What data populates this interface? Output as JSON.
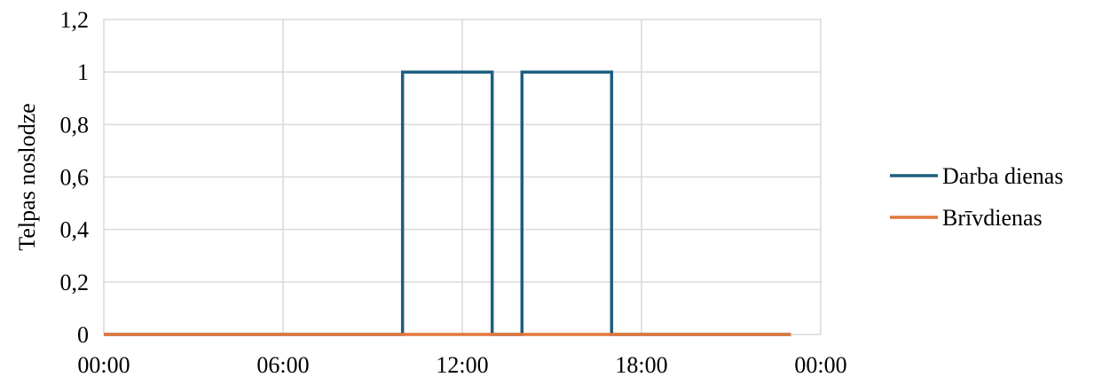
{
  "chart_data": {
    "type": "line",
    "title": "",
    "xlabel": "",
    "ylabel": "Telpas noslodze",
    "x_ticks": [
      "00:00",
      "06:00",
      "12:00",
      "18:00",
      "00:00"
    ],
    "y_ticks": [
      "0",
      "0,2",
      "0,4",
      "0,6",
      "0,8",
      "1",
      "1,2"
    ],
    "xlim": [
      "00:00",
      "24:00"
    ],
    "ylim": [
      0,
      1.2
    ],
    "grid": true,
    "legend_position": "right",
    "series": [
      {
        "name": "Darba dienas",
        "color": "#1f5f7f",
        "points": [
          [
            "00:00",
            0
          ],
          [
            "10:00",
            0
          ],
          [
            "10:00",
            1
          ],
          [
            "13:00",
            1
          ],
          [
            "13:00",
            0
          ],
          [
            "14:00",
            0
          ],
          [
            "14:00",
            1
          ],
          [
            "17:00",
            1
          ],
          [
            "17:00",
            0
          ],
          [
            "23:00",
            0
          ]
        ]
      },
      {
        "name": "Brīvdienas",
        "color": "#e2773a",
        "points": [
          [
            "00:00",
            0
          ],
          [
            "23:00",
            0
          ]
        ]
      }
    ]
  }
}
